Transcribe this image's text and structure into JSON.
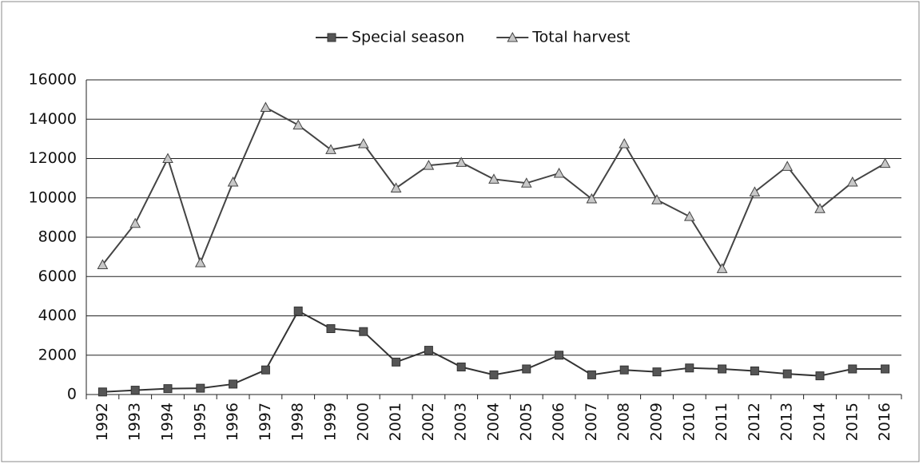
{
  "chart_data": {
    "type": "line",
    "categories": [
      "1992",
      "1993",
      "1994",
      "1995",
      "1996",
      "1997",
      "1998",
      "1999",
      "2000",
      "2001",
      "2002",
      "2003",
      "2004",
      "2005",
      "2006",
      "2007",
      "2008",
      "2009",
      "2010",
      "2011",
      "2012",
      "2013",
      "2014",
      "2015",
      "2016"
    ],
    "series": [
      {
        "name": "Special season",
        "color": "#333333",
        "marker": "square",
        "marker_color": "#555555",
        "values": [
          130,
          220,
          300,
          320,
          530,
          1250,
          4250,
          3350,
          3200,
          1650,
          2250,
          1400,
          1000,
          1300,
          2000,
          1000,
          1250,
          1150,
          1350,
          1300,
          1200,
          1050,
          950,
          1300,
          1300
        ]
      },
      {
        "name": "Total harvest",
        "color": "#444444",
        "marker": "triangle",
        "marker_color": "#c8c8c8",
        "values": [
          6600,
          8700,
          12000,
          6700,
          10800,
          14600,
          13700,
          12450,
          12750,
          10500,
          11650,
          11800,
          10950,
          10750,
          11250,
          9950,
          12750,
          9900,
          9050,
          6400,
          10300,
          11600,
          9450,
          10800,
          11750
        ]
      }
    ],
    "ylim": [
      0,
      16000
    ],
    "yticks": [
      0,
      2000,
      4000,
      6000,
      8000,
      10000,
      12000,
      14000,
      16000
    ],
    "grid": true,
    "legend": "top"
  }
}
